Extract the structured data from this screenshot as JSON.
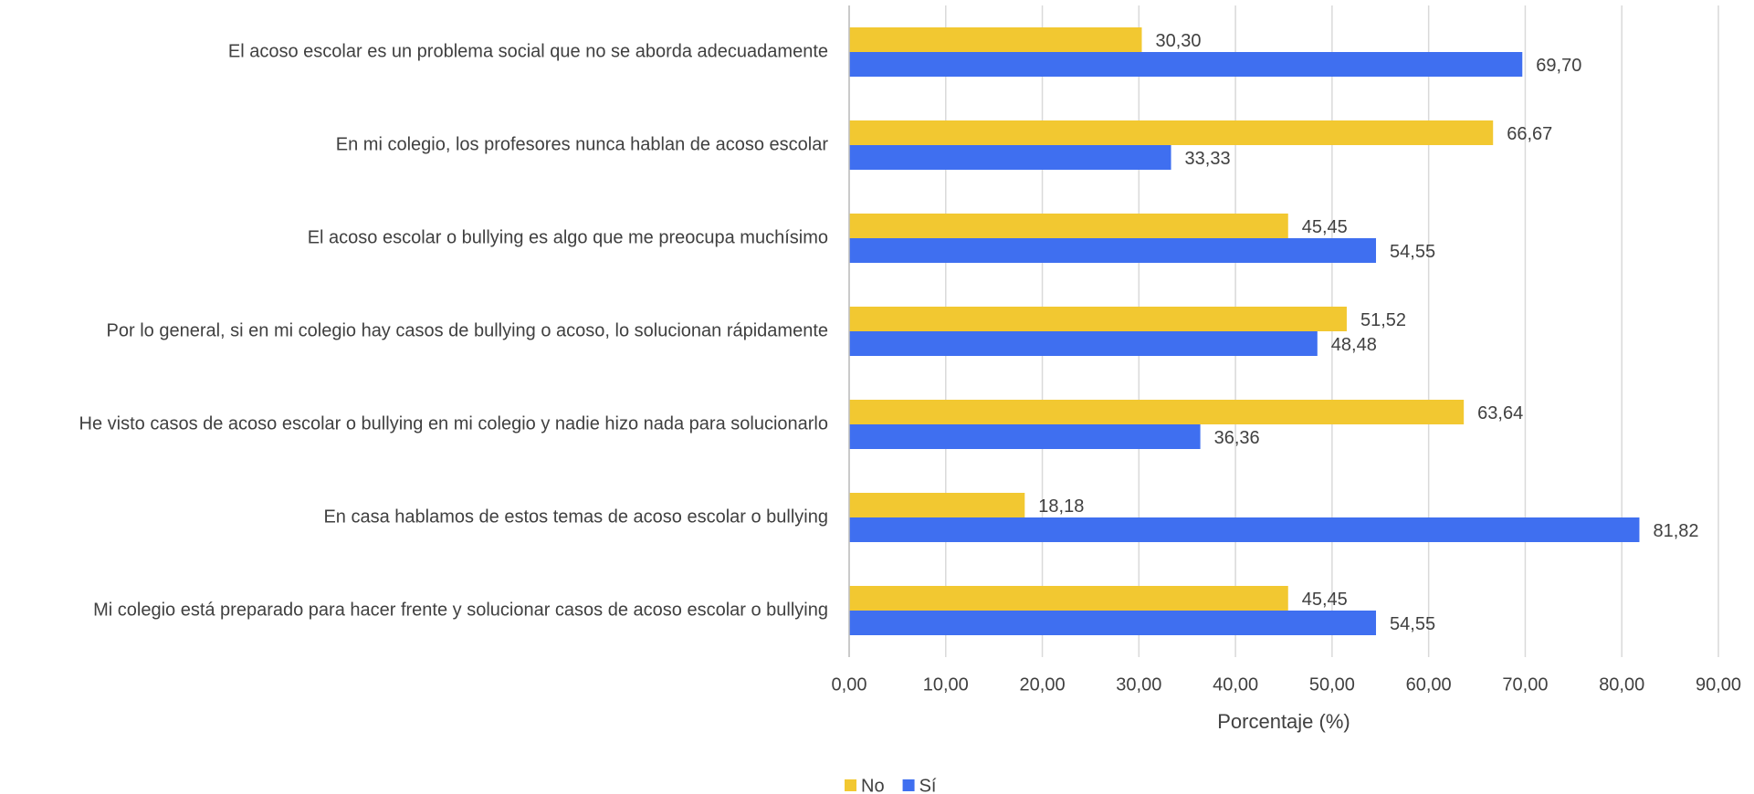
{
  "chart_data": {
    "type": "hbar",
    "xlabel": "Porcentaje (%)",
    "categories": [
      "El acoso escolar es un problema social que no se aborda adecuadamente",
      "En mi colegio, los profesores nunca hablan de acoso escolar",
      "El acoso escolar o bullying es algo que me preocupa muchísimo",
      "Por lo general, si en mi colegio hay casos de bullying o acoso, lo solucionan rápidamente",
      "He visto casos de acoso escolar o bullying en mi colegio y nadie hizo nada para solucionarlo",
      "En casa hablamos de estos temas de acoso escolar o bullying",
      "Mi colegio está preparado para hacer frente y solucionar casos de acoso escolar o bullying"
    ],
    "series": [
      {
        "name": "No",
        "color": "#f2c831",
        "values": [
          30.3,
          66.67,
          45.45,
          51.52,
          63.64,
          18.18,
          45.45
        ],
        "value_labels": [
          "30,30",
          "66,67",
          "45,45",
          "51,52",
          "63,64",
          "18,18",
          "45,45"
        ]
      },
      {
        "name": "Sí",
        "color": "#3f6ff0",
        "values": [
          69.7,
          33.33,
          54.55,
          48.48,
          36.36,
          81.82,
          54.55
        ],
        "value_labels": [
          "69,70",
          "33,33",
          "54,55",
          "48,48",
          "36,36",
          "81,82",
          "54,55"
        ]
      }
    ],
    "xlim": [
      0,
      90
    ],
    "xticks": [
      {
        "value": 0,
        "label": "0,00"
      },
      {
        "value": 10,
        "label": "10,00"
      },
      {
        "value": 20,
        "label": "20,00"
      },
      {
        "value": 30,
        "label": "30,00"
      },
      {
        "value": 40,
        "label": "40,00"
      },
      {
        "value": 50,
        "label": "50,00"
      },
      {
        "value": 60,
        "label": "60,00"
      },
      {
        "value": 70,
        "label": "70,00"
      },
      {
        "value": 80,
        "label": "80,00"
      },
      {
        "value": 90,
        "label": "90,00"
      }
    ],
    "grid": true,
    "legend": "bottom"
  }
}
